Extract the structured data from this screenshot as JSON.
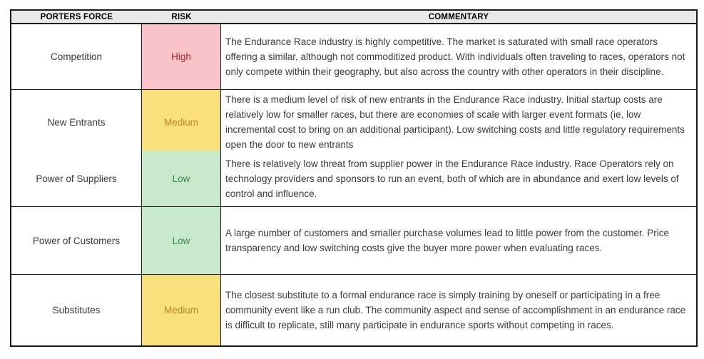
{
  "table": {
    "headers": [
      "PORTERS FORCE",
      "RISK",
      "COMMENTARY"
    ],
    "rows": [
      {
        "force": "Competition",
        "risk": "High",
        "risk_level": "high",
        "commentary": "The Endurance Race industry is highly competitive. The market is saturated with small race operators offering a similar, although not commoditized product. With individuals often traveling to races, operators not only compete within their geography, but also across the country with other operators in their discipline."
      },
      {
        "force": "New Entrants",
        "risk": "Medium",
        "risk_level": "medium",
        "commentary": "There is a medium level of risk of new entrants in the Endurance Race industry. Initial startup costs are relatively low for smaller races, but there are economies of scale with larger event formats (ie, low incremental cost to bring on an additional participant). Low switching costs and little regulatory requirements open the door to new entrants"
      },
      {
        "force": "Power of Suppliers",
        "risk": "Low",
        "risk_level": "low",
        "commentary": "There is relatively low threat from supplier power in the Endurance Race industry. Race Operators rely on technology providers and sponsors to run an event, both of which are in abundance and exert low levels of control and influence."
      },
      {
        "force": "Power of Customers",
        "risk": "Low",
        "risk_level": "low",
        "commentary": "A large number of customers and smaller purchase volumes lead to little power from the customer. Price transparency and low switching costs give the buyer more power when evaluating races."
      },
      {
        "force": "Substitutes",
        "risk": "Medium",
        "risk_level": "medium",
        "commentary": "The closest substitute to a formal endurance race is simply training by oneself or participating in a free community event like a run club. The community aspect and sense of accomplishment in an endurance race is difficult to replicate, still many participate in endurance sports without competing in races."
      }
    ]
  },
  "colors": {
    "header_bg": "#e9e9e9",
    "high_bg": "#f9c3c9",
    "high_text": "#ac2230",
    "medium_bg": "#fadf7d",
    "medium_text": "#b8891f",
    "low_bg": "#c9e9cd",
    "low_text": "#38894c",
    "border": "#1a1a1a",
    "body_text": "#3b3b3b"
  }
}
